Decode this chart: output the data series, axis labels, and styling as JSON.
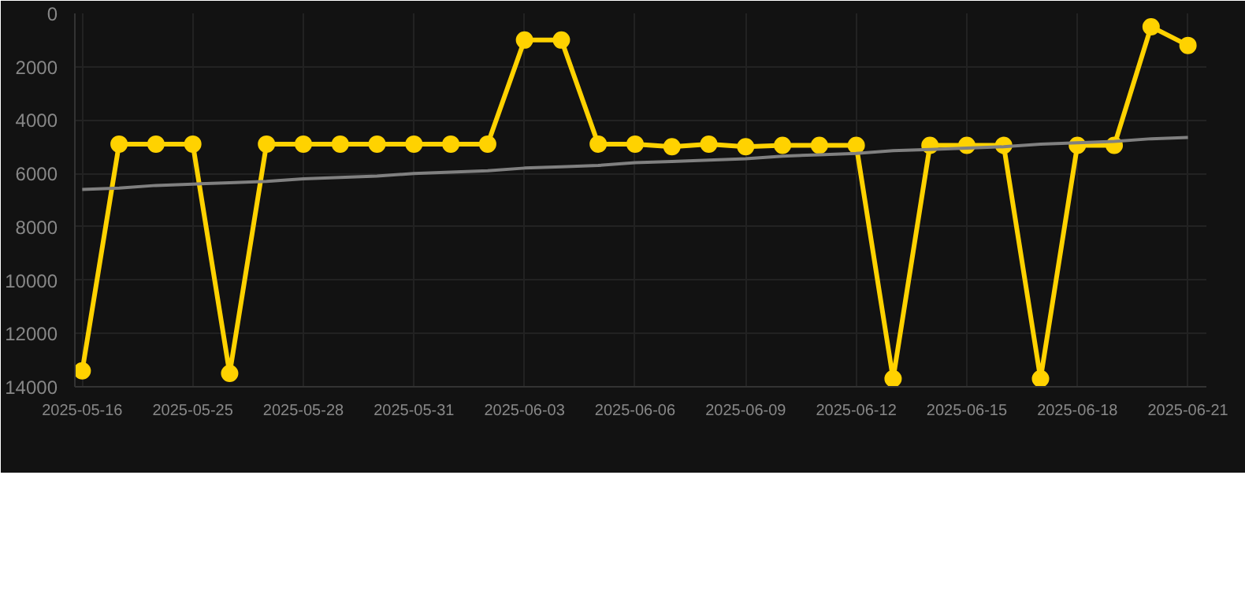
{
  "chart_data": {
    "type": "line",
    "categories": [
      "2025-05-16",
      null,
      null,
      "2025-05-25",
      null,
      null,
      "2025-05-28",
      null,
      null,
      "2025-05-31",
      null,
      null,
      "2025-06-03",
      null,
      null,
      "2025-06-06",
      null,
      null,
      "2025-06-09",
      null,
      null,
      "2025-06-12",
      null,
      null,
      "2025-06-15",
      null,
      null,
      "2025-06-18",
      null,
      null,
      "2025-06-21"
    ],
    "series": [
      {
        "color": "#ffd200",
        "marker": "circle",
        "values": [
          13400,
          4900,
          4900,
          4900,
          13500,
          4900,
          4900,
          4900,
          4900,
          4900,
          4900,
          4900,
          1000,
          1000,
          4900,
          4900,
          5000,
          4900,
          5000,
          4950,
          4950,
          4950,
          13700,
          4950,
          4950,
          4950,
          13700,
          4950,
          4950,
          500,
          1200
        ]
      },
      {
        "color": "#808080",
        "marker": "none",
        "values": [
          6600,
          6550,
          6450,
          6400,
          6350,
          6300,
          6200,
          6150,
          6100,
          6000,
          5950,
          5900,
          5800,
          5750,
          5700,
          5600,
          5550,
          5500,
          5450,
          5350,
          5300,
          5250,
          5150,
          5100,
          5050,
          5000,
          4900,
          4850,
          4800,
          4700,
          4650
        ]
      }
    ],
    "ylim": [
      14000,
      0
    ],
    "yticks": [
      0,
      2000,
      4000,
      6000,
      8000,
      10000,
      12000,
      14000
    ],
    "grid": true,
    "line_style": "solid"
  }
}
